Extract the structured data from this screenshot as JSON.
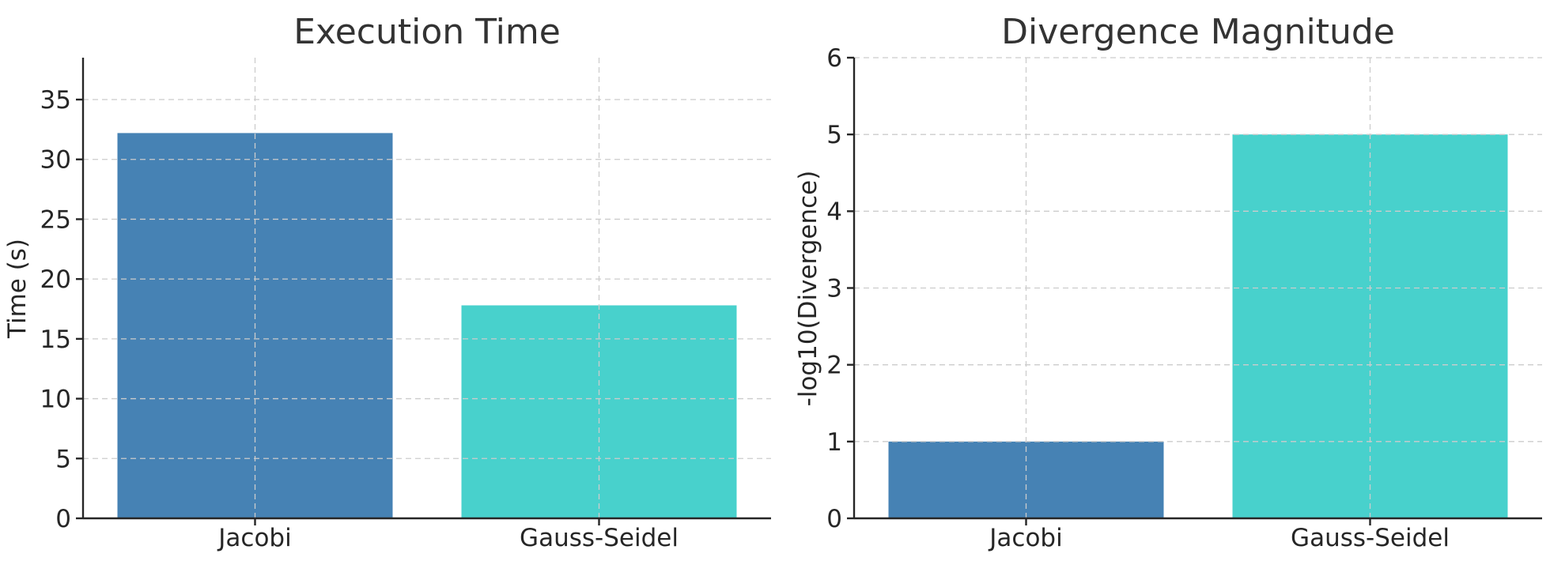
{
  "chart_data": [
    {
      "type": "bar",
      "title": "Execution Time",
      "xlabel": "",
      "ylabel": "Time (s)",
      "categories": [
        "Jacobi",
        "Gauss-Seidel"
      ],
      "values": [
        32.2,
        17.8
      ],
      "colors": [
        "#4682b4",
        "#48d1cc"
      ],
      "ylim": [
        0,
        38.5
      ],
      "yticks": [
        0,
        5,
        10,
        15,
        20,
        25,
        30,
        35
      ],
      "grid": true
    },
    {
      "type": "bar",
      "title": "Divergence Magnitude",
      "xlabel": "",
      "ylabel": "-log10(Divergence)",
      "categories": [
        "Jacobi",
        "Gauss-Seidel"
      ],
      "values": [
        1,
        5
      ],
      "colors": [
        "#4682b4",
        "#48d1cc"
      ],
      "ylim": [
        0,
        6
      ],
      "yticks": [
        0,
        1,
        2,
        3,
        4,
        5,
        6
      ],
      "grid": true
    }
  ]
}
